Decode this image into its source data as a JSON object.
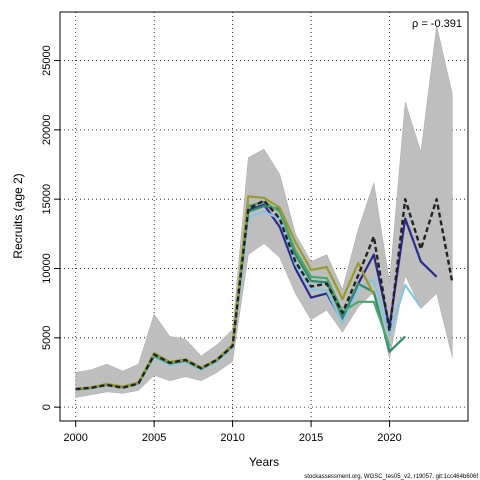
{
  "chart_data": {
    "type": "line",
    "xlabel": "Years",
    "ylabel": "Recruits (age 2)",
    "xlim": [
      1999,
      2025
    ],
    "ylim": [
      -1000,
      28500
    ],
    "xticks": [
      2000,
      2005,
      2010,
      2015,
      2020
    ],
    "yticks": [
      0,
      5000,
      10000,
      15000,
      20000,
      25000
    ],
    "grid": true,
    "annotation": "ρ = -0.391",
    "footer": "stockassessment.org, WGSC_tes05_v2, r19057, git:1cc464b606f",
    "band": {
      "x": [
        2000,
        2001,
        2002,
        2003,
        2004,
        2005,
        2006,
        2007,
        2008,
        2009,
        2010,
        2011,
        2012,
        2013,
        2014,
        2015,
        2016,
        2017,
        2018,
        2019,
        2020,
        2021,
        2022,
        2023,
        2024
      ],
      "lower": [
        700,
        900,
        1100,
        1000,
        1200,
        2300,
        1900,
        2200,
        1900,
        2500,
        3300,
        11000,
        11800,
        10800,
        8200,
        6300,
        7000,
        5400,
        7200,
        8300,
        3500,
        9500,
        7100,
        8200,
        3600
      ],
      "upper": [
        2500,
        2700,
        3100,
        2600,
        3100,
        6700,
        5100,
        4900,
        3700,
        4500,
        5600,
        18000,
        18600,
        16800,
        12500,
        10500,
        11000,
        8500,
        12800,
        16200,
        9000,
        22000,
        18400,
        27500,
        22600
      ]
    },
    "series": [
      {
        "color": "#222222",
        "dashed": true,
        "x": [
          2000,
          2001,
          2002,
          2003,
          2004,
          2005,
          2006,
          2007,
          2008,
          2009,
          2010,
          2011,
          2012,
          2013,
          2014,
          2015,
          2016,
          2017,
          2018,
          2019,
          2020,
          2021,
          2022,
          2023,
          2024
        ],
        "y": [
          1300,
          1400,
          1600,
          1400,
          1700,
          3800,
          3200,
          3400,
          2800,
          3400,
          4400,
          14300,
          14900,
          13600,
          10500,
          8700,
          8900,
          6800,
          9500,
          12300,
          5500,
          15000,
          11400,
          15000,
          9000
        ]
      },
      {
        "color": "#2a2a8c",
        "dashed": false,
        "x": [
          2000,
          2001,
          2002,
          2003,
          2004,
          2005,
          2006,
          2007,
          2008,
          2009,
          2010,
          2011,
          2012,
          2013,
          2014,
          2015,
          2016,
          2017,
          2018,
          2019,
          2020,
          2021,
          2022,
          2023
        ],
        "y": [
          1300,
          1400,
          1650,
          1450,
          1750,
          3650,
          3100,
          3300,
          2750,
          3350,
          4400,
          14200,
          14600,
          13000,
          10000,
          7900,
          8200,
          6200,
          8900,
          11000,
          5800,
          13600,
          10500,
          9400
        ]
      },
      {
        "color": "#85c5e0",
        "dashed": false,
        "x": [
          2000,
          2001,
          2002,
          2003,
          2004,
          2005,
          2006,
          2007,
          2008,
          2009,
          2010,
          2011,
          2012,
          2013,
          2014,
          2015,
          2016,
          2017,
          2018,
          2019,
          2020,
          2021,
          2022
        ],
        "y": [
          1250,
          1350,
          1600,
          1400,
          1700,
          3600,
          3050,
          3250,
          2700,
          3300,
          4300,
          13700,
          14100,
          13600,
          10300,
          8500,
          8400,
          6100,
          8500,
          9200,
          5200,
          8800,
          7200
        ]
      },
      {
        "color": "#2e8b6e",
        "dashed": false,
        "x": [
          2000,
          2001,
          2002,
          2003,
          2004,
          2005,
          2006,
          2007,
          2008,
          2009,
          2010,
          2011,
          2012,
          2013,
          2014,
          2015,
          2016,
          2017,
          2018,
          2019,
          2020,
          2021
        ],
        "y": [
          1280,
          1380,
          1620,
          1420,
          1720,
          3700,
          3150,
          3350,
          2780,
          3380,
          4420,
          14100,
          14500,
          14300,
          11000,
          9100,
          9000,
          6500,
          8900,
          8300,
          4000,
          5100
        ]
      },
      {
        "color": "#4aa86a",
        "dashed": false,
        "x": [
          2000,
          2001,
          2002,
          2003,
          2004,
          2005,
          2006,
          2007,
          2008,
          2009,
          2010,
          2011,
          2012,
          2013,
          2014,
          2015,
          2016,
          2017,
          2018,
          2019,
          2020
        ],
        "y": [
          1290,
          1390,
          1630,
          1430,
          1730,
          3750,
          3180,
          3380,
          2800,
          3400,
          4450,
          14500,
          14800,
          14100,
          11300,
          9400,
          9300,
          6900,
          7600,
          7600,
          4400
        ]
      },
      {
        "color": "#9a9a2e",
        "dashed": false,
        "x": [
          2000,
          2001,
          2002,
          2003,
          2004,
          2005,
          2006,
          2007,
          2008,
          2009,
          2010,
          2011,
          2012,
          2013,
          2014,
          2015,
          2016,
          2017,
          2018,
          2019
        ],
        "y": [
          1320,
          1420,
          1680,
          1480,
          1780,
          3900,
          3250,
          3450,
          2850,
          3450,
          4500,
          15200,
          15100,
          14400,
          11900,
          9900,
          10100,
          7800,
          10400,
          8100
        ]
      }
    ]
  }
}
